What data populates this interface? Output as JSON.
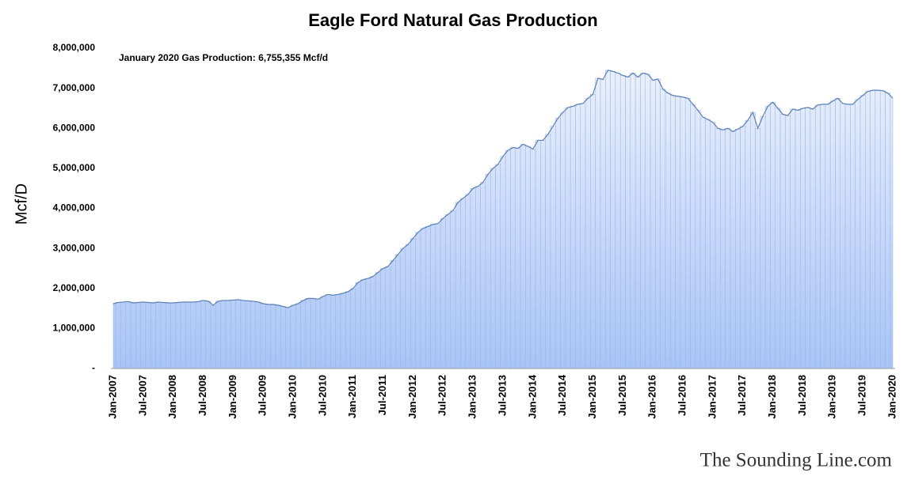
{
  "chart_data": {
    "type": "area",
    "title": "Eagle Ford Natural Gas Production",
    "y_label": "Mcf/D",
    "annotation": "January 2020  Gas Production: 6,755,355  Mcf/d",
    "watermark": "The Sounding Line.com",
    "color": "#a8c4f7",
    "line_color": "#5a7fb5",
    "ylim": [
      0,
      8000000
    ],
    "yticks": [
      {
        "value": 0,
        "label": "-"
      },
      {
        "value": 1000000,
        "label": "1,000,000"
      },
      {
        "value": 2000000,
        "label": "2,000,000"
      },
      {
        "value": 3000000,
        "label": "3,000,000"
      },
      {
        "value": 4000000,
        "label": "4,000,000"
      },
      {
        "value": 5000000,
        "label": "5,000,000"
      },
      {
        "value": 6000000,
        "label": "6,000,000"
      },
      {
        "value": 7000000,
        "label": "7,000,000"
      },
      {
        "value": 8000000,
        "label": "8,000,000"
      }
    ],
    "categories": [
      "Jan-2007",
      null,
      null,
      null,
      null,
      null,
      "Jul-2007",
      null,
      null,
      null,
      null,
      null,
      "Jan-2008",
      null,
      null,
      null,
      null,
      null,
      "Jul-2008",
      null,
      null,
      null,
      null,
      null,
      "Jan-2009",
      null,
      null,
      null,
      null,
      null,
      "Jul-2009",
      null,
      null,
      null,
      null,
      null,
      "Jan-2010",
      null,
      null,
      null,
      null,
      null,
      "Jul-2010",
      null,
      null,
      null,
      null,
      null,
      "Jan-2011",
      null,
      null,
      null,
      null,
      null,
      "Jul-2011",
      null,
      null,
      null,
      null,
      null,
      "Jan-2012",
      null,
      null,
      null,
      null,
      null,
      "Jul-2012",
      null,
      null,
      null,
      null,
      null,
      "Jan-2013",
      null,
      null,
      null,
      null,
      null,
      "Jul-2013",
      null,
      null,
      null,
      null,
      null,
      "Jan-2014",
      null,
      null,
      null,
      null,
      null,
      "Jul-2014",
      null,
      null,
      null,
      null,
      null,
      "Jan-2015",
      null,
      null,
      null,
      null,
      null,
      "Jul-2015",
      null,
      null,
      null,
      null,
      null,
      "Jan-2016",
      null,
      null,
      null,
      null,
      null,
      "Jul-2016",
      null,
      null,
      null,
      null,
      null,
      "Jan-2017",
      null,
      null,
      null,
      null,
      null,
      "Jul-2017",
      null,
      null,
      null,
      null,
      null,
      "Jan-2018",
      null,
      null,
      null,
      null,
      null,
      "Jul-2018",
      null,
      null,
      null,
      null,
      null,
      "Jan-2019",
      null,
      null,
      null,
      null,
      null,
      "Jul-2019",
      null,
      null,
      null,
      null,
      null,
      "Jan-2020"
    ],
    "values": [
      1620000,
      1650000,
      1660000,
      1670000,
      1640000,
      1650000,
      1660000,
      1650000,
      1640000,
      1660000,
      1650000,
      1640000,
      1640000,
      1650000,
      1660000,
      1660000,
      1660000,
      1670000,
      1700000,
      1680000,
      1580000,
      1680000,
      1700000,
      1700000,
      1710000,
      1720000,
      1700000,
      1690000,
      1680000,
      1660000,
      1620000,
      1600000,
      1600000,
      1580000,
      1550000,
      1520000,
      1580000,
      1620000,
      1700000,
      1750000,
      1750000,
      1730000,
      1800000,
      1850000,
      1830000,
      1850000,
      1880000,
      1920000,
      2000000,
      2150000,
      2220000,
      2250000,
      2300000,
      2400000,
      2500000,
      2550000,
      2700000,
      2850000,
      3000000,
      3100000,
      3250000,
      3400000,
      3500000,
      3550000,
      3600000,
      3620000,
      3750000,
      3850000,
      3950000,
      4150000,
      4250000,
      4350000,
      4500000,
      4550000,
      4650000,
      4850000,
      5000000,
      5100000,
      5300000,
      5450000,
      5520000,
      5500000,
      5600000,
      5550000,
      5480000,
      5700000,
      5700000,
      5850000,
      6050000,
      6250000,
      6400000,
      6520000,
      6550000,
      6600000,
      6620000,
      6750000,
      6850000,
      7250000,
      7220000,
      7450000,
      7420000,
      7380000,
      7320000,
      7280000,
      7380000,
      7280000,
      7380000,
      7350000,
      7200000,
      7230000,
      6980000,
      6880000,
      6820000,
      6800000,
      6780000,
      6750000,
      6600000,
      6450000,
      6280000,
      6220000,
      6150000,
      6000000,
      5960000,
      6000000,
      5920000,
      5980000,
      6050000,
      6200000,
      6400000,
      6000000,
      6300000,
      6550000,
      6650000,
      6500000,
      6350000,
      6320000,
      6480000,
      6450000,
      6500000,
      6520000,
      6480000,
      6580000,
      6600000,
      6600000,
      6680000,
      6750000,
      6620000,
      6600000,
      6600000,
      6720000,
      6820000,
      6920000,
      6950000,
      6950000,
      6940000,
      6880000,
      6755355
    ]
  }
}
